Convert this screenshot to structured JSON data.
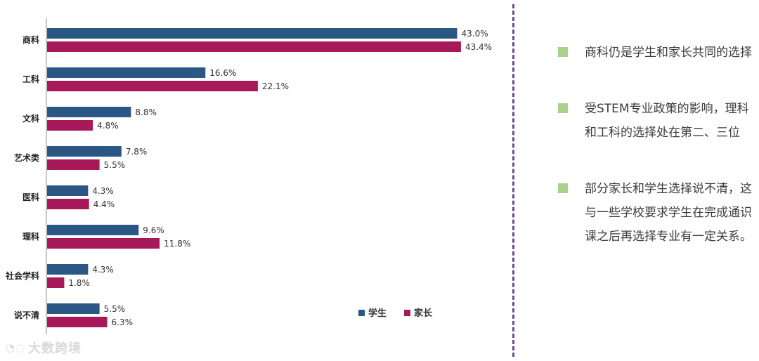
{
  "chart_data": {
    "type": "bar",
    "orientation": "horizontal",
    "categories": [
      "商科",
      "工科",
      "文科",
      "艺术类",
      "医科",
      "理科",
      "社会学科",
      "说不清"
    ],
    "series": [
      {
        "name": "学生",
        "values": [
          43.0,
          16.6,
          8.8,
          7.8,
          4.3,
          9.6,
          4.3,
          5.5
        ],
        "labels": [
          "43.0%",
          "16.6%",
          "8.8%",
          "7.8%",
          "4.3%",
          "9.6%",
          "4.3%",
          "5.5%"
        ],
        "color": "#2a5783"
      },
      {
        "name": "家长",
        "values": [
          43.4,
          22.1,
          4.8,
          5.5,
          4.4,
          11.8,
          1.8,
          6.3
        ],
        "labels": [
          "43.4%",
          "22.1%",
          "4.8%",
          "5.5%",
          "4.4%",
          "11.8%",
          "1.8%",
          "6.3%"
        ],
        "color": "#a8195a"
      }
    ],
    "xlim": [
      0,
      50
    ],
    "grid": false,
    "legend_position": "bottom-right"
  },
  "notes": [
    {
      "text": "商科仍是学生和家长共同的选择"
    },
    {
      "text": "受STEM专业政策的影响，理科和工科的选择处在第二、三位"
    },
    {
      "text": "部分家长和学生选择说不清，这与一些学校要求学生在完成通识课之后再选择专业有一定关系。"
    }
  ],
  "colors": {
    "bullet": "#a9d18e",
    "divider": "#6a4c93"
  },
  "watermark": {
    "text": "大数跨境"
  }
}
